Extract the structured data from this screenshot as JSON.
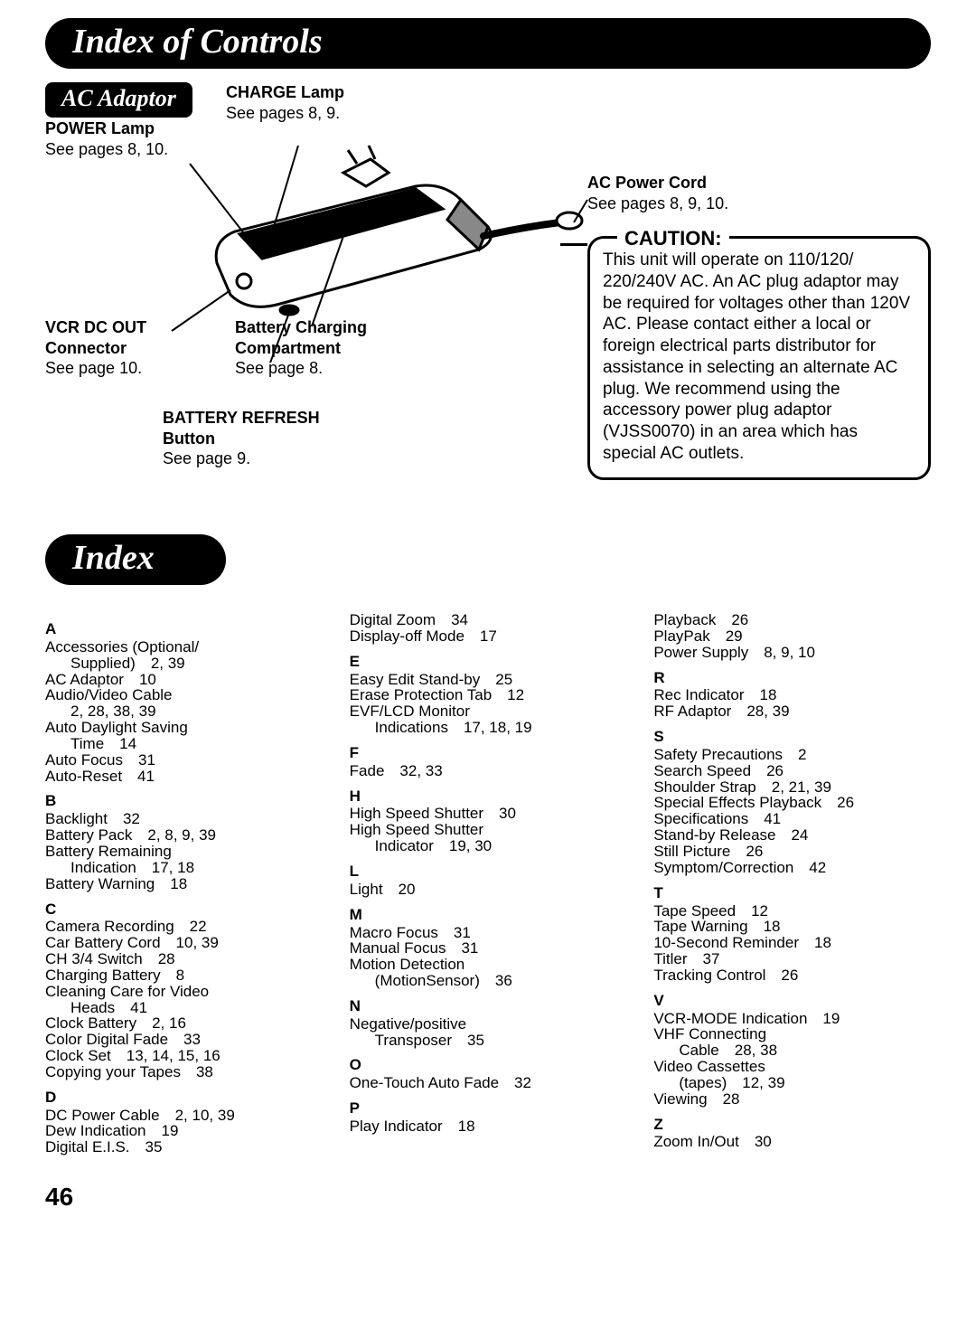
{
  "header_controls": "Index of Controls",
  "header_index": "Index",
  "ac_adaptor_badge": "AC Adaptor",
  "callouts": {
    "charge_lamp": {
      "title": "CHARGE Lamp",
      "sub": "See pages 8, 9."
    },
    "power_lamp": {
      "title": "POWER Lamp",
      "sub": "See pages 8, 10."
    },
    "ac_cord": {
      "title": "AC Power Cord",
      "sub": "See pages  8, 9, 10."
    },
    "vcr_dc": {
      "title": "VCR DC OUT Connector",
      "sub": "See page 10."
    },
    "battery_charging": {
      "title": "Battery Charging Compartment",
      "sub": "See page 8."
    },
    "battery_refresh": {
      "title": "BATTERY REFRESH Button",
      "sub": "See page 9."
    }
  },
  "caution": {
    "title": "CAUTION:",
    "body": "This unit will operate on 110/120/ 220/240V AC. An AC plug adaptor may be required for voltages other than 120V AC. Please contact either a local or foreign electrical parts distributor for assistance in selecting an alternate AC plug. We recommend using the accessory power plug adaptor (VJSS0070) in an area which has special AC outlets."
  },
  "index": {
    "col1": [
      {
        "head": "A"
      },
      {
        "text": "Accessories (Optional/"
      },
      {
        "text": "Supplied)    2, 39",
        "indent": true
      },
      {
        "text": "AC Adaptor    10"
      },
      {
        "text": "Audio/Video Cable"
      },
      {
        "text": "2, 28, 38, 39",
        "indent": true
      },
      {
        "text": "Auto Daylight Saving"
      },
      {
        "text": "Time    14",
        "indent": true
      },
      {
        "text": "Auto Focus    31"
      },
      {
        "text": "Auto-Reset    41"
      },
      {
        "head": "B"
      },
      {
        "text": "Backlight    32"
      },
      {
        "text": "Battery Pack    2, 8, 9, 39"
      },
      {
        "text": "Battery Remaining"
      },
      {
        "text": "Indication    17, 18",
        "indent": true
      },
      {
        "text": "Battery Warning    18"
      },
      {
        "head": "C"
      },
      {
        "text": "Camera Recording    22"
      },
      {
        "text": "Car Battery Cord    10, 39"
      },
      {
        "text": "CH 3/4 Switch    28"
      },
      {
        "text": "Charging Battery    8"
      },
      {
        "text": "Cleaning Care for Video"
      },
      {
        "text": "Heads    41",
        "indent": true
      },
      {
        "text": "Clock Battery    2, 16"
      },
      {
        "text": "Color Digital Fade    33"
      },
      {
        "text": "Clock Set    13, 14, 15, 16"
      },
      {
        "text": "Copying your Tapes    38"
      },
      {
        "head": "D"
      },
      {
        "text": "DC Power Cable    2, 10, 39"
      },
      {
        "text": "Dew Indication    19"
      },
      {
        "text": "Digital E.I.S.    35"
      }
    ],
    "col2": [
      {
        "text": "Digital Zoom    34"
      },
      {
        "text": "Display-off Mode    17"
      },
      {
        "head": "E"
      },
      {
        "text": "Easy Edit Stand-by    25"
      },
      {
        "text": "Erase Protection Tab    12"
      },
      {
        "text": "EVF/LCD Monitor"
      },
      {
        "text": "Indications    17, 18, 19",
        "indent": true
      },
      {
        "head": "F"
      },
      {
        "text": "Fade    32, 33"
      },
      {
        "head": "H"
      },
      {
        "text": "High Speed Shutter    30"
      },
      {
        "text": "High Speed Shutter"
      },
      {
        "text": "Indicator    19, 30",
        "indent": true
      },
      {
        "head": "L"
      },
      {
        "text": "Light    20"
      },
      {
        "head": "M"
      },
      {
        "text": "Macro Focus    31"
      },
      {
        "text": "Manual Focus    31"
      },
      {
        "text": "Motion Detection"
      },
      {
        "text": "(MotionSensor)    36",
        "indent": true
      },
      {
        "head": "N"
      },
      {
        "text": "Negative/positive"
      },
      {
        "text": "Transposer    35",
        "indent": true
      },
      {
        "head": "O"
      },
      {
        "text": "One-Touch Auto Fade    32"
      },
      {
        "head": "P"
      },
      {
        "text": "Play Indicator    18"
      }
    ],
    "col3": [
      {
        "text": "Playback    26"
      },
      {
        "text": "PlayPak    29"
      },
      {
        "text": "Power Supply    8, 9, 10"
      },
      {
        "head": "R"
      },
      {
        "text": "Rec Indicator    18"
      },
      {
        "text": "RF Adaptor    28, 39"
      },
      {
        "head": "S"
      },
      {
        "text": "Safety Precautions    2"
      },
      {
        "text": "Search Speed    26"
      },
      {
        "text": "Shoulder Strap    2, 21, 39"
      },
      {
        "text": "Special Effects Playback    26"
      },
      {
        "text": "Specifications    41"
      },
      {
        "text": "Stand-by Release    24"
      },
      {
        "text": "Still Picture    26"
      },
      {
        "text": "Symptom/Correction    42"
      },
      {
        "head": "T"
      },
      {
        "text": "Tape Speed    12"
      },
      {
        "text": "Tape Warning    18"
      },
      {
        "text": "10-Second Reminder    18"
      },
      {
        "text": "Titler    37"
      },
      {
        "text": "Tracking Control    26"
      },
      {
        "head": "V"
      },
      {
        "text": "VCR-MODE Indication    19"
      },
      {
        "text": "VHF Connecting"
      },
      {
        "text": "Cable    28, 38",
        "indent": true
      },
      {
        "text": "Video Cassettes"
      },
      {
        "text": "(tapes)    12, 39",
        "indent": true
      },
      {
        "text": "Viewing    28"
      },
      {
        "head": "Z"
      },
      {
        "text": "Zoom In/Out    30"
      }
    ]
  },
  "page_number": "46"
}
